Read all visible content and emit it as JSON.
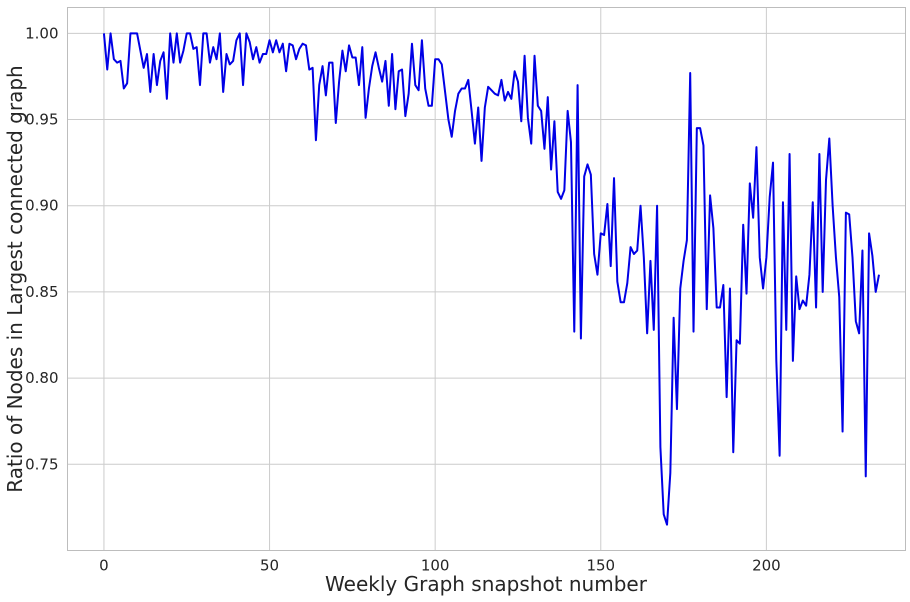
{
  "chart_data": {
    "type": "line",
    "xlabel": "Weekly Graph snapshot number",
    "ylabel": "Ratio of Nodes in Largest connected graph",
    "xlim": [
      -11,
      242
    ],
    "ylim": [
      0.7,
      1.015
    ],
    "xticks": [
      0,
      50,
      100,
      150,
      200
    ],
    "yticks": [
      0.75,
      0.8,
      0.85,
      0.9,
      0.95,
      1.0
    ],
    "ytick_labels": [
      "0.75",
      "0.80",
      "0.85",
      "0.90",
      "0.95",
      "1.00"
    ],
    "grid": true,
    "line_color": "#0000e6",
    "series": [
      {
        "values": [
          1.0,
          0.979,
          1.0,
          0.985,
          0.983,
          0.984,
          0.968,
          0.971,
          1.0,
          1.0,
          1.0,
          0.99,
          0.98,
          0.988,
          0.966,
          0.988,
          0.97,
          0.984,
          0.989,
          0.962,
          1.0,
          0.983,
          1.0,
          0.983,
          0.99,
          1.0,
          1.0,
          0.991,
          0.992,
          0.97,
          1.0,
          1.0,
          0.983,
          0.992,
          0.985,
          1.0,
          0.966,
          0.988,
          0.982,
          0.984,
          0.996,
          1.0,
          0.97,
          1.0,
          0.995,
          0.985,
          0.992,
          0.983,
          0.988,
          0.988,
          0.996,
          0.989,
          0.996,
          0.989,
          0.994,
          0.978,
          0.994,
          0.993,
          0.985,
          0.991,
          0.994,
          0.993,
          0.979,
          0.98,
          0.938,
          0.97,
          0.981,
          0.964,
          0.983,
          0.983,
          0.948,
          0.972,
          0.99,
          0.978,
          0.993,
          0.986,
          0.986,
          0.97,
          0.992,
          0.951,
          0.968,
          0.981,
          0.989,
          0.98,
          0.972,
          0.984,
          0.958,
          0.988,
          0.956,
          0.978,
          0.979,
          0.952,
          0.965,
          0.994,
          0.97,
          0.967,
          0.996,
          0.968,
          0.958,
          0.958,
          0.985,
          0.985,
          0.982,
          0.966,
          0.95,
          0.94,
          0.955,
          0.965,
          0.968,
          0.968,
          0.973,
          0.955,
          0.936,
          0.957,
          0.926,
          0.957,
          0.969,
          0.967,
          0.965,
          0.964,
          0.973,
          0.961,
          0.966,
          0.962,
          0.978,
          0.972,
          0.949,
          0.987,
          0.951,
          0.936,
          0.987,
          0.958,
          0.955,
          0.933,
          0.963,
          0.921,
          0.949,
          0.908,
          0.904,
          0.909,
          0.955,
          0.937,
          0.827,
          0.97,
          0.823,
          0.917,
          0.924,
          0.918,
          0.872,
          0.86,
          0.884,
          0.883,
          0.901,
          0.865,
          0.916,
          0.856,
          0.844,
          0.844,
          0.855,
          0.876,
          0.872,
          0.874,
          0.9,
          0.87,
          0.826,
          0.868,
          0.828,
          0.9,
          0.76,
          0.721,
          0.715,
          0.745,
          0.835,
          0.782,
          0.852,
          0.868,
          0.88,
          0.977,
          0.827,
          0.945,
          0.945,
          0.935,
          0.84,
          0.906,
          0.887,
          0.841,
          0.841,
          0.854,
          0.789,
          0.852,
          0.757,
          0.822,
          0.82,
          0.889,
          0.849,
          0.913,
          0.893,
          0.934,
          0.87,
          0.852,
          0.87,
          0.905,
          0.925,
          0.81,
          0.755,
          0.902,
          0.828,
          0.93,
          0.81,
          0.859,
          0.84,
          0.845,
          0.842,
          0.86,
          0.902,
          0.841,
          0.93,
          0.85,
          0.915,
          0.939,
          0.9,
          0.87,
          0.847,
          0.769,
          0.896,
          0.895,
          0.87,
          0.833,
          0.826,
          0.874,
          0.743,
          0.884,
          0.871,
          0.85,
          0.86
        ]
      }
    ]
  }
}
